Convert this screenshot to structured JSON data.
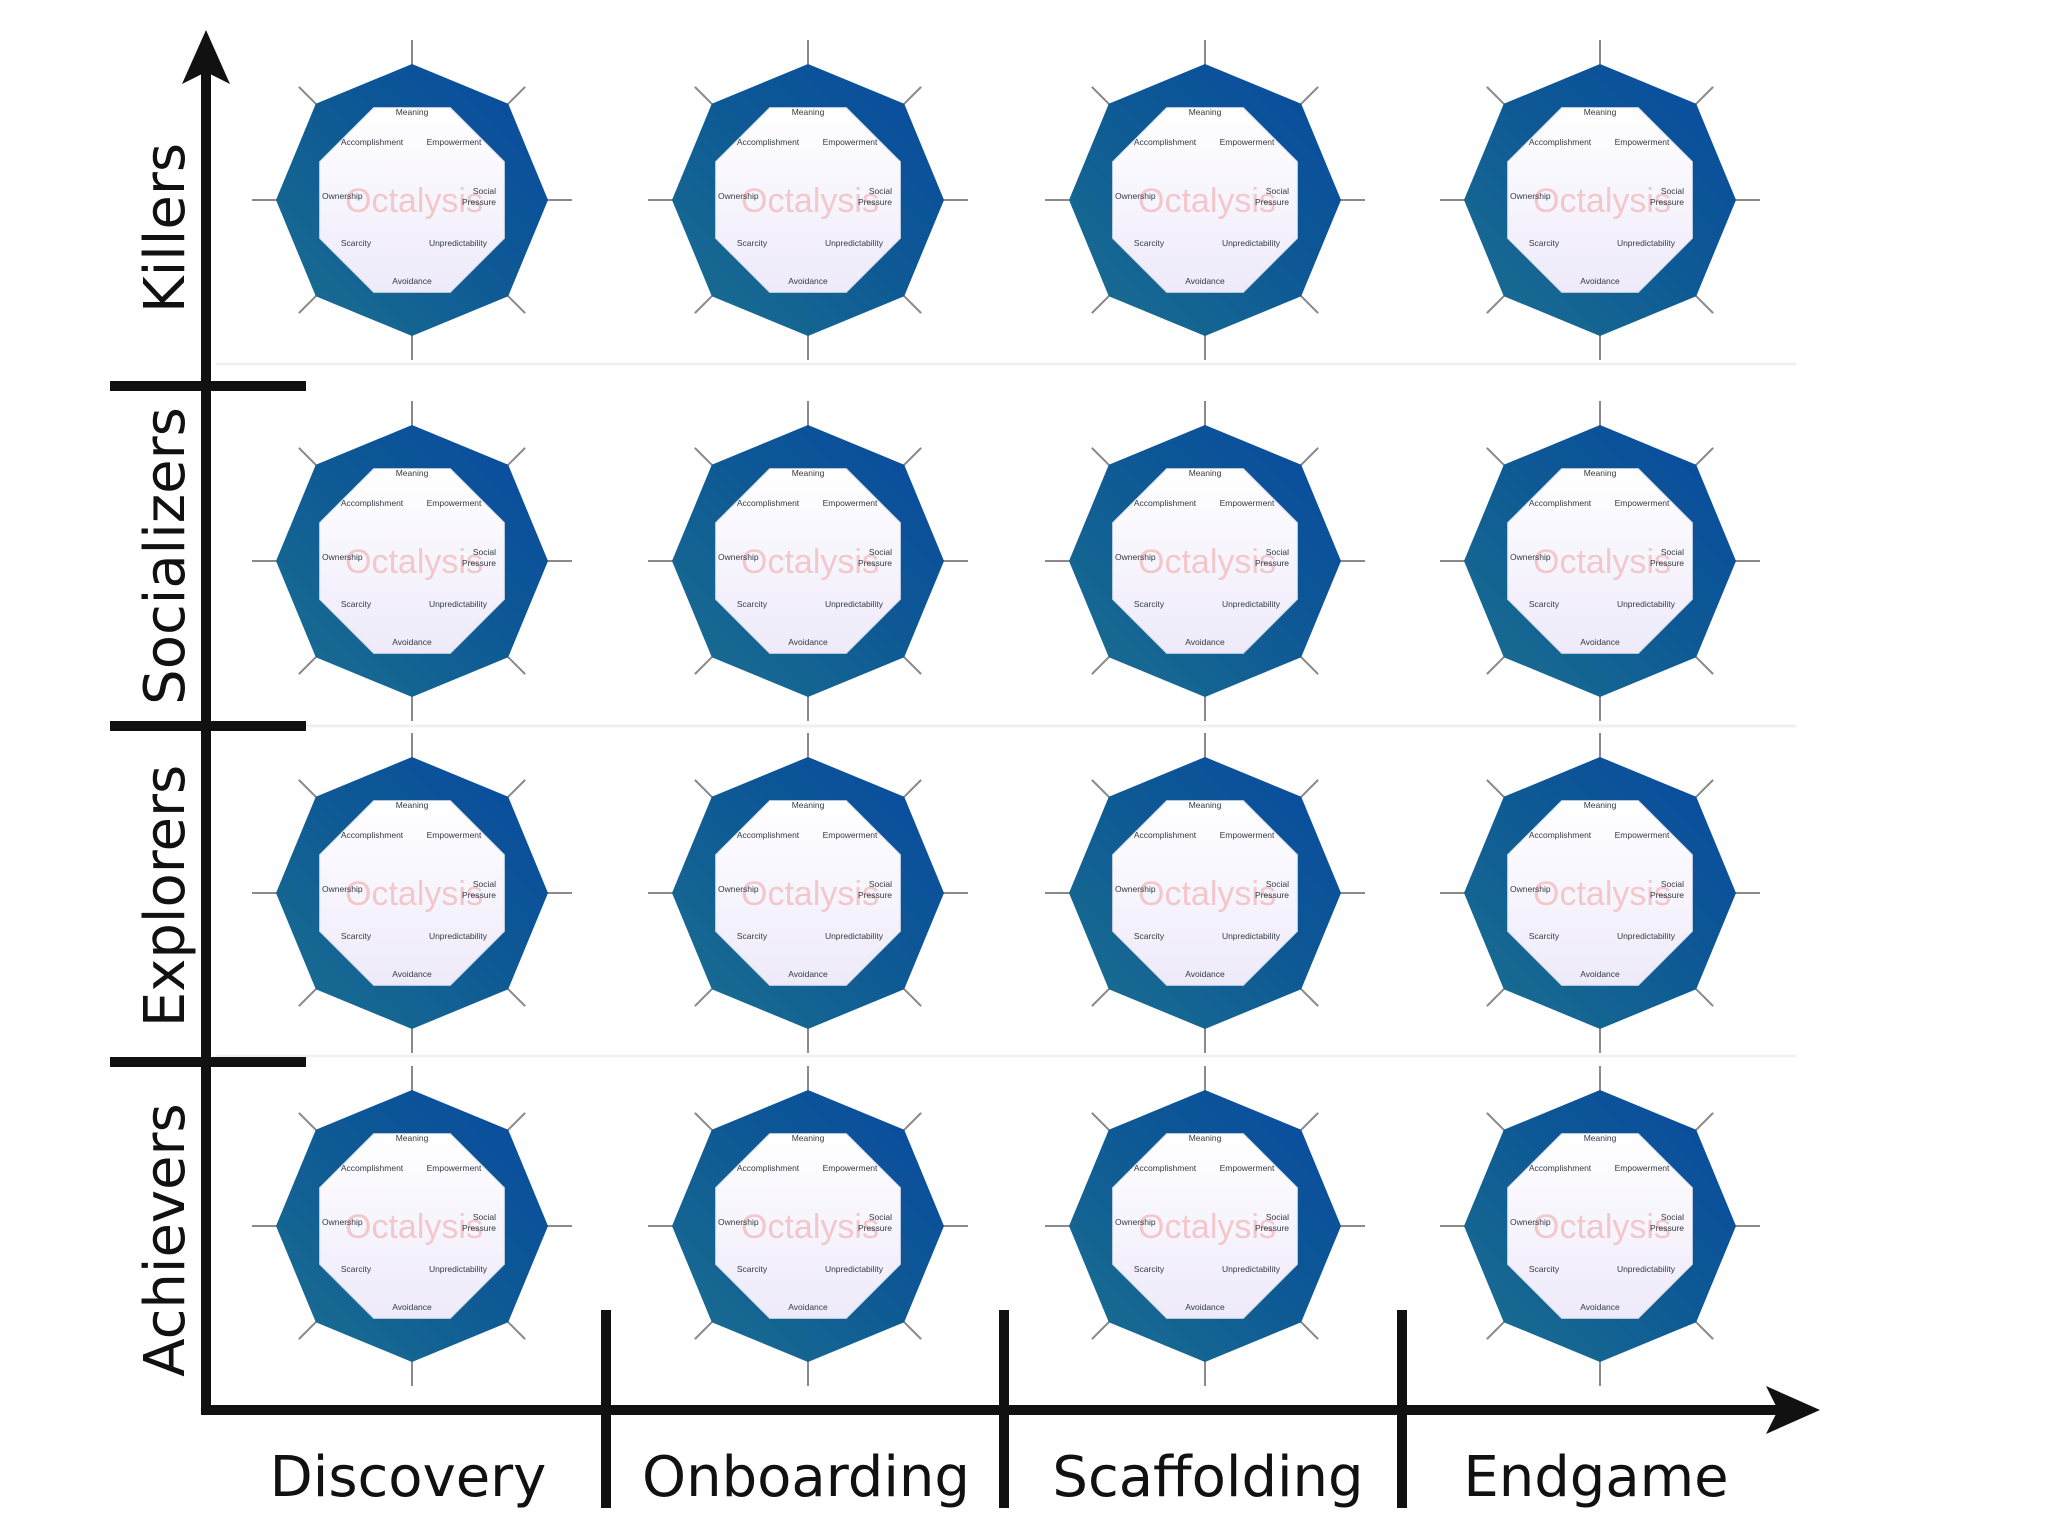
{
  "diagram": {
    "row_labels": [
      "Killers",
      "Socializers",
      "Explorers",
      "Achievers"
    ],
    "column_labels": [
      "Discovery",
      "Onboarding",
      "Scaffolding",
      "Endgame"
    ],
    "octagon": {
      "core_drives": {
        "top": "Meaning",
        "top_left": "Accomplishment",
        "top_right": "Empowerment",
        "left": "Ownership",
        "right_line1": "Social",
        "right_line2": "Pressure",
        "bottom_left": "Scarcity",
        "bottom_right": "Unpredictability",
        "bottom": "Avoidance"
      },
      "watermark": "Octalysis"
    },
    "colors": {
      "octagon_dark": "#0a4f9e",
      "octagon_mid": "#0d5a96",
      "octagon_teal": "#1a6f8e",
      "inner_fill": "#f3f1fb",
      "axis": "#111111",
      "spoke": "#8a8a8a",
      "gridline": "#eef0f3"
    }
  }
}
